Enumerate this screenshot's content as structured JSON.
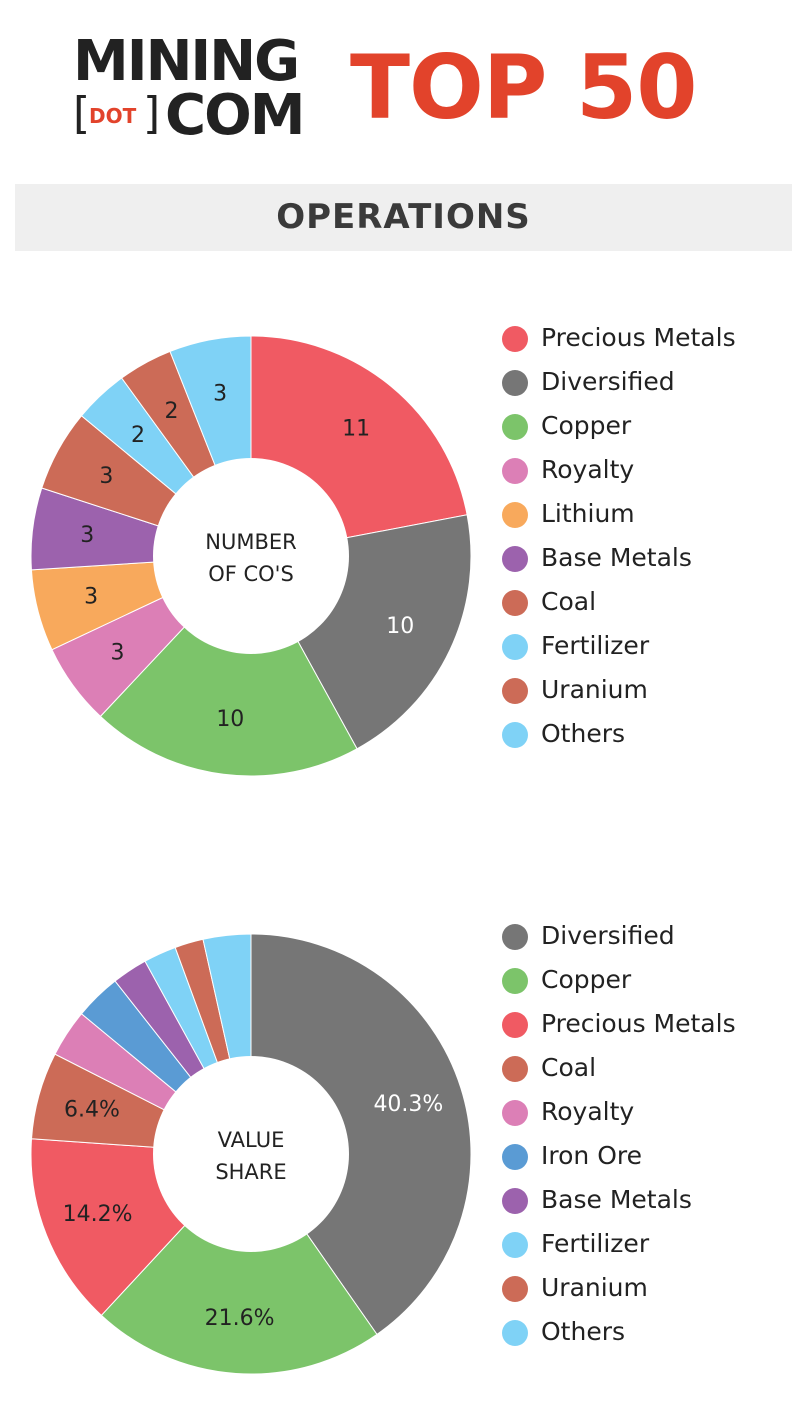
{
  "header": {
    "logo_line1": "MINING",
    "logo_dot": "DOT",
    "logo_com": "COM",
    "title": "TOP 50"
  },
  "section": {
    "title": "OPERATIONS"
  },
  "colors": {
    "accent": "#e2432b",
    "precious_metals": "#f05a63",
    "diversified": "#767676",
    "copper": "#7cc46a",
    "royalty": "#dc7fb6",
    "lithium": "#f8a95c",
    "base_metals": "#9c62ad",
    "coal": "#cc6b57",
    "fertilizer": "#7fd2f6",
    "uranium": "#cc6b57",
    "others": "#7fd2f6",
    "iron_ore": "#5a9bd4"
  },
  "chart_data": [
    {
      "type": "pie",
      "title": "",
      "center_label_lines": [
        "NUMBER",
        "OF CO'S"
      ],
      "legend_position": "right",
      "slices": [
        {
          "name": "Precious Metals",
          "value": 11,
          "label": "11",
          "color": "#f05a63",
          "label_color": "#222222"
        },
        {
          "name": "Diversified",
          "value": 10,
          "label": "10",
          "color": "#767676",
          "label_color": "#ffffff"
        },
        {
          "name": "Copper",
          "value": 10,
          "label": "10",
          "color": "#7cc46a",
          "label_color": "#222222"
        },
        {
          "name": "Royalty",
          "value": 3,
          "label": "3",
          "color": "#dc7fb6",
          "label_color": "#222222"
        },
        {
          "name": "Lithium",
          "value": 3,
          "label": "3",
          "color": "#f8a95c",
          "label_color": "#222222"
        },
        {
          "name": "Base Metals",
          "value": 3,
          "label": "3",
          "color": "#9c62ad",
          "label_color": "#222222"
        },
        {
          "name": "Coal",
          "value": 3,
          "label": "3",
          "color": "#cc6b57",
          "label_color": "#222222"
        },
        {
          "name": "Fertilizer",
          "value": 2,
          "label": "2",
          "color": "#7fd2f6",
          "label_color": "#222222"
        },
        {
          "name": "Uranium",
          "value": 2,
          "label": "2",
          "color": "#cc6b57",
          "label_color": "#222222"
        },
        {
          "name": "Others",
          "value": 3,
          "label": "3",
          "color": "#7fd2f6",
          "label_color": "#222222"
        }
      ]
    },
    {
      "type": "pie",
      "title": "",
      "center_label_lines": [
        "VALUE",
        "SHARE"
      ],
      "legend_position": "right",
      "slices": [
        {
          "name": "Diversified",
          "value": 40.3,
          "label": "40.3%",
          "color": "#767676",
          "label_color": "#ffffff"
        },
        {
          "name": "Copper",
          "value": 21.6,
          "label": "21.6%",
          "color": "#7cc46a",
          "label_color": "#222222"
        },
        {
          "name": "Precious Metals",
          "value": 14.2,
          "label": "14.2%",
          "color": "#f05a63",
          "label_color": "#222222"
        },
        {
          "name": "Coal",
          "value": 6.4,
          "label": "6.4%",
          "color": "#cc6b57",
          "label_color": "#222222"
        },
        {
          "name": "Royalty",
          "value": 3.5,
          "label": "",
          "color": "#dc7fb6",
          "label_color": "#222222"
        },
        {
          "name": "Iron Ore",
          "value": 3.4,
          "label": "",
          "color": "#5a9bd4",
          "label_color": "#222222"
        },
        {
          "name": "Base Metals",
          "value": 2.6,
          "label": "",
          "color": "#9c62ad",
          "label_color": "#222222"
        },
        {
          "name": "Fertilizer",
          "value": 2.4,
          "label": "",
          "color": "#7fd2f6",
          "label_color": "#222222"
        },
        {
          "name": "Uranium",
          "value": 2.1,
          "label": "",
          "color": "#cc6b57",
          "label_color": "#222222"
        },
        {
          "name": "Others",
          "value": 3.5,
          "label": "",
          "color": "#7fd2f6",
          "label_color": "#222222"
        }
      ]
    }
  ],
  "legend1": {
    "items": [
      {
        "label": "Precious Metals",
        "color": "#f05a63"
      },
      {
        "label": "Diversified",
        "color": "#767676"
      },
      {
        "label": "Copper",
        "color": "#7cc46a"
      },
      {
        "label": "Royalty",
        "color": "#dc7fb6"
      },
      {
        "label": "Lithium",
        "color": "#f8a95c"
      },
      {
        "label": "Base Metals",
        "color": "#9c62ad"
      },
      {
        "label": "Coal",
        "color": "#cc6b57"
      },
      {
        "label": "Fertilizer",
        "color": "#7fd2f6"
      },
      {
        "label": "Uranium",
        "color": "#cc6b57"
      },
      {
        "label": "Others",
        "color": "#7fd2f6"
      }
    ]
  },
  "legend2": {
    "items": [
      {
        "label": "Diversified",
        "color": "#767676"
      },
      {
        "label": "Copper",
        "color": "#7cc46a"
      },
      {
        "label": "Precious Metals",
        "color": "#f05a63"
      },
      {
        "label": "Coal",
        "color": "#cc6b57"
      },
      {
        "label": "Royalty",
        "color": "#dc7fb6"
      },
      {
        "label": "Iron Ore",
        "color": "#5a9bd4"
      },
      {
        "label": "Base Metals",
        "color": "#9c62ad"
      },
      {
        "label": "Fertilizer",
        "color": "#7fd2f6"
      },
      {
        "label": "Uranium",
        "color": "#cc6b57"
      },
      {
        "label": "Others",
        "color": "#7fd2f6"
      }
    ]
  }
}
